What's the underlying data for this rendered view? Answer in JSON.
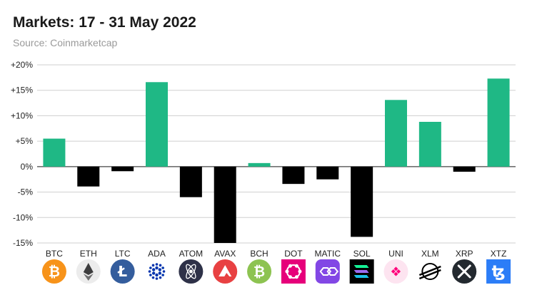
{
  "header": {
    "title": "Markets: 17 - 31 May 2022",
    "subtitle": "Source: Coinmarketcap"
  },
  "colors": {
    "positive": "#1fb885",
    "negative": "#000000",
    "grid": "#cfcfcf",
    "zero_line": "#444444"
  },
  "chart_data": {
    "type": "bar",
    "title": "Markets: 17 - 31 May 2022",
    "subtitle": "Source: Coinmarketcap",
    "xlabel": "",
    "ylabel": "",
    "ylim": [
      -15,
      20
    ],
    "yticks": [
      20,
      15,
      10,
      5,
      0,
      -5,
      -10,
      -15
    ],
    "ytick_labels": [
      "+20%",
      "+15%",
      "+10%",
      "+5%",
      "0%",
      "-5%",
      "-10%",
      "-15%"
    ],
    "grid": true,
    "categories": [
      "BTC",
      "ETH",
      "LTC",
      "ADA",
      "ATOM",
      "AVAX",
      "BCH",
      "DOT",
      "MATIC",
      "SOL",
      "UNI",
      "XLM",
      "XRP",
      "XTZ"
    ],
    "values": [
      5.5,
      -3.9,
      -0.9,
      16.6,
      -6.0,
      -15.2,
      0.7,
      -3.4,
      -2.5,
      -13.8,
      13.1,
      8.8,
      -1.0,
      17.3
    ],
    "icons": [
      "bitcoin-icon",
      "ethereum-icon",
      "litecoin-icon",
      "cardano-icon",
      "cosmos-icon",
      "avalanche-icon",
      "bitcoin-cash-icon",
      "polkadot-icon",
      "polygon-icon",
      "solana-icon",
      "uniswap-icon",
      "stellar-icon",
      "xrp-icon",
      "tezos-icon"
    ]
  }
}
